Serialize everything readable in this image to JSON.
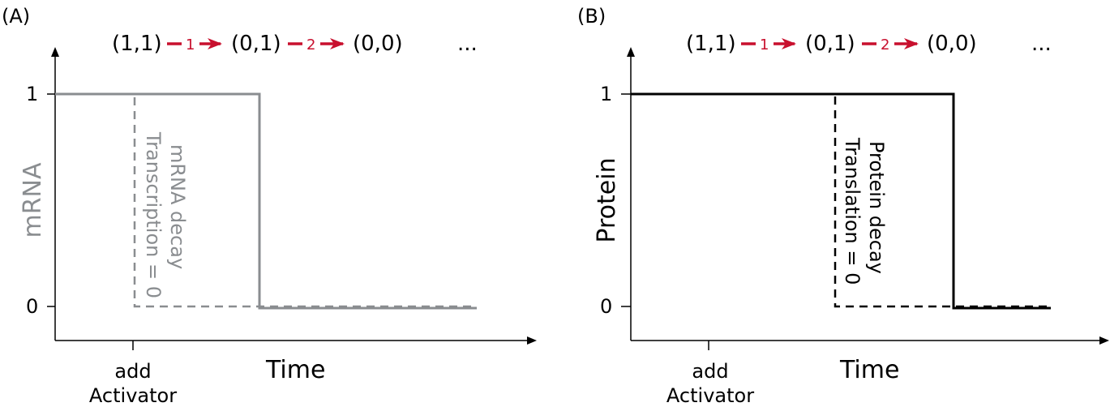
{
  "colors": {
    "accent": "#c8102e",
    "mrna_gray": "#8a8d90",
    "protein_black": "#000000"
  },
  "panel_a": {
    "label": "(A)",
    "sequence": {
      "state1": "(1,1)",
      "step1": "1",
      "state2": "(0,1)",
      "step2": "2",
      "state3": "(0,0)",
      "ellipsis": "..."
    },
    "ylabel": "mRNA",
    "xlabel": "Time",
    "ytick_high": "1",
    "ytick_low": "0",
    "xtick_line1": "add",
    "xtick_line2": "Activator",
    "dashed_annotation": "Transcription = 0",
    "solid_annotation": "mRNA decay"
  },
  "panel_b": {
    "label": "(B)",
    "sequence": {
      "state1": "(1,1)",
      "step1": "1",
      "state2": "(0,1)",
      "step2": "2",
      "state3": "(0,0)",
      "ellipsis": "..."
    },
    "ylabel": "Protein",
    "xlabel": "Time",
    "ytick_high": "1",
    "ytick_low": "0",
    "xtick_line1": "add",
    "xtick_line2": "Activator",
    "dashed_annotation": "Translation = 0",
    "solid_annotation": "Protein decay"
  }
}
